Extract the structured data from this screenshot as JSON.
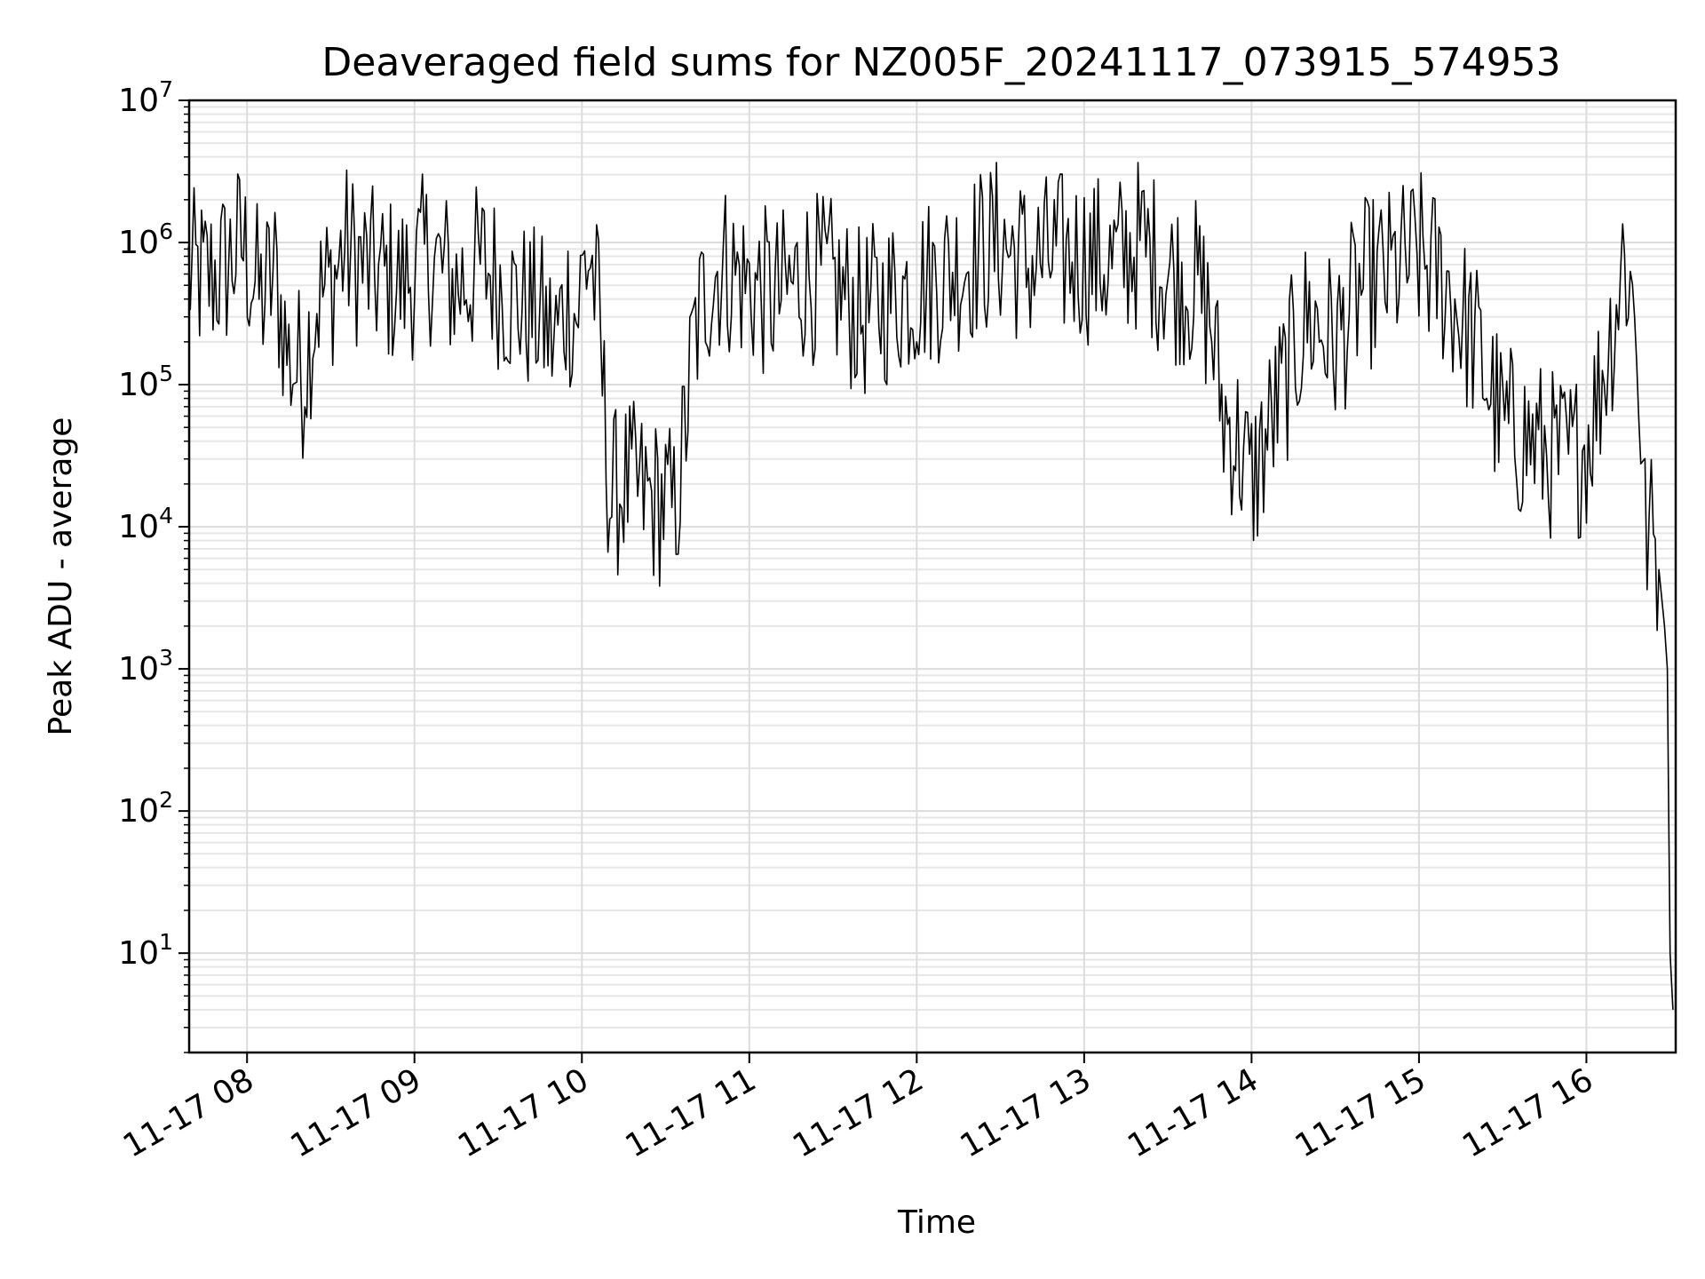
{
  "chart_data": {
    "type": "line",
    "title": "Deaveraged field sums for NZ005F_20241117_073915_574953",
    "xlabel": "Time",
    "ylabel": "Peak ADU - average",
    "yscale": "log",
    "ylim": [
      2,
      10000000
    ],
    "xlim": [
      "2024-11-17 07:39:15",
      "2024-11-17 16:32:00"
    ],
    "grid": true,
    "line_color": "#000000",
    "x_ticks": [
      {
        "value": "2024-11-17 08:00",
        "label": "11-17 08"
      },
      {
        "value": "2024-11-17 09:00",
        "label": "11-17 09"
      },
      {
        "value": "2024-11-17 10:00",
        "label": "11-17 10"
      },
      {
        "value": "2024-11-17 11:00",
        "label": "11-17 11"
      },
      {
        "value": "2024-11-17 12:00",
        "label": "11-17 12"
      },
      {
        "value": "2024-11-17 13:00",
        "label": "11-17 13"
      },
      {
        "value": "2024-11-17 14:00",
        "label": "11-17 14"
      },
      {
        "value": "2024-11-17 15:00",
        "label": "11-17 15"
      },
      {
        "value": "2024-11-17 16:00",
        "label": "11-17 16"
      }
    ],
    "y_ticks": [
      {
        "value": 10,
        "base": "10",
        "exp": "1"
      },
      {
        "value": 100,
        "base": "10",
        "exp": "2"
      },
      {
        "value": 1000,
        "base": "10",
        "exp": "3"
      },
      {
        "value": 10000,
        "base": "10",
        "exp": "4"
      },
      {
        "value": 100000,
        "base": "10",
        "exp": "5"
      },
      {
        "value": 1000000,
        "base": "10",
        "exp": "6"
      },
      {
        "value": 10000000,
        "base": "10",
        "exp": "7"
      }
    ],
    "series": [
      {
        "x": [
          "2024-11-17 07:39",
          "2024-11-17 07:45",
          "2024-11-17 07:52",
          "2024-11-17 07:58",
          "2024-11-17 08:05",
          "2024-11-17 08:10",
          "2024-11-17 08:15",
          "2024-11-17 08:20",
          "2024-11-17 08:25",
          "2024-11-17 08:30",
          "2024-11-17 08:35",
          "2024-11-17 08:45",
          "2024-11-17 08:55",
          "2024-11-17 09:05",
          "2024-11-17 09:15",
          "2024-11-17 09:25",
          "2024-11-17 09:35",
          "2024-11-17 09:45",
          "2024-11-17 09:50",
          "2024-11-17 09:55",
          "2024-11-17 09:58",
          "2024-11-17 10:01",
          "2024-11-17 10:03",
          "2024-11-17 10:06",
          "2024-11-17 10:10",
          "2024-11-17 10:15",
          "2024-11-17 10:20",
          "2024-11-17 10:25",
          "2024-11-17 10:30",
          "2024-11-17 10:33",
          "2024-11-17 10:36",
          "2024-11-17 10:40",
          "2024-11-17 10:45",
          "2024-11-17 10:50",
          "2024-11-17 11:00",
          "2024-11-17 11:10",
          "2024-11-17 11:20",
          "2024-11-17 11:30",
          "2024-11-17 11:40",
          "2024-11-17 11:50",
          "2024-11-17 12:00",
          "2024-11-17 12:10",
          "2024-11-17 12:20",
          "2024-11-17 12:30",
          "2024-11-17 12:40",
          "2024-11-17 12:50",
          "2024-11-17 13:00",
          "2024-11-17 13:10",
          "2024-11-17 13:20",
          "2024-11-17 13:30",
          "2024-11-17 13:40",
          "2024-11-17 13:45",
          "2024-11-17 13:50",
          "2024-11-17 13:55",
          "2024-11-17 14:00",
          "2024-11-17 14:05",
          "2024-11-17 14:10",
          "2024-11-17 14:20",
          "2024-11-17 14:30",
          "2024-11-17 14:40",
          "2024-11-17 14:50",
          "2024-11-17 15:00",
          "2024-11-17 15:10",
          "2024-11-17 15:15",
          "2024-11-17 15:20",
          "2024-11-17 15:30",
          "2024-11-17 15:40",
          "2024-11-17 15:50",
          "2024-11-17 15:55",
          "2024-11-17 16:00",
          "2024-11-17 16:05",
          "2024-11-17 16:10",
          "2024-11-17 16:13",
          "2024-11-17 16:15",
          "2024-11-17 16:18",
          "2024-11-17 16:21",
          "2024-11-17 16:24",
          "2024-11-17 16:26",
          "2024-11-17 16:28",
          "2024-11-17 16:29",
          "2024-11-17 16:30",
          "2024-11-17 16:31"
        ],
        "y": [
          600000,
          550000,
          650000,
          1000000,
          400000,
          600000,
          150000,
          120000,
          400000,
          500000,
          900000,
          600000,
          500000,
          800000,
          500000,
          700000,
          400000,
          300000,
          200000,
          400000,
          300000,
          700000,
          800000,
          300000,
          15000,
          20000,
          18000,
          15000,
          15000,
          12000,
          30000,
          200000,
          500000,
          700000,
          500000,
          400000,
          600000,
          500000,
          300000,
          400000,
          500000,
          600000,
          800000,
          1000000,
          700000,
          800000,
          800000,
          700000,
          1000000,
          600000,
          500000,
          300000,
          60000,
          40000,
          20000,
          40000,
          80000,
          300000,
          200000,
          500000,
          600000,
          800000,
          500000,
          300000,
          200000,
          50000,
          40000,
          30000,
          30000,
          40000,
          100000,
          300000,
          800000,
          600000,
          250000,
          10000,
          8000,
          5000,
          2000,
          1000,
          10,
          4
        ]
      }
    ]
  }
}
